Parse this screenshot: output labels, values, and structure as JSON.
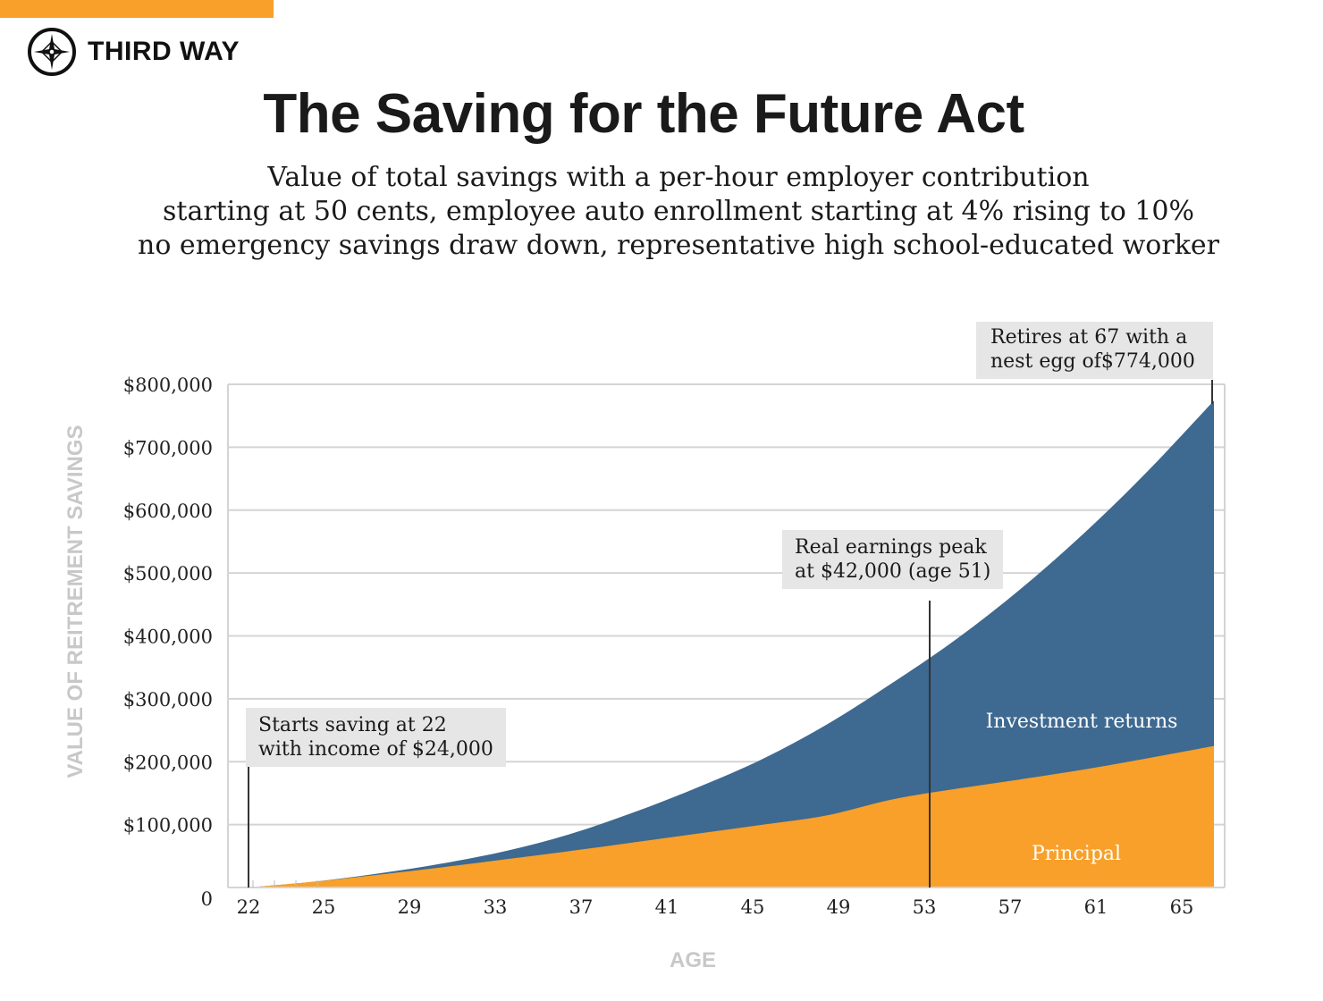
{
  "brand": {
    "name": "THIRD WAY",
    "accent": "#f8a02a"
  },
  "title": "The Saving for the Future Act",
  "subtitle": [
    "Value of total savings with a per-hour employer contribution",
    "starting at 50 cents, employee auto enrollment starting at 4% rising to 10%",
    "no emergency savings draw down, representative high school-educated worker"
  ],
  "chart_data": {
    "type": "area",
    "stacked": false,
    "xlabel": "AGE",
    "ylabel": "VALUE OF REITREMENT SAVINGS",
    "xlim": [
      22,
      67
    ],
    "ylim": [
      0,
      800000
    ],
    "grid": true,
    "x_ticks": [
      22,
      25,
      29,
      33,
      37,
      41,
      45,
      49,
      53,
      57,
      61,
      65
    ],
    "y_ticks": [
      {
        "value": 0,
        "label": "0"
      },
      {
        "value": 100000,
        "label": "$100,000"
      },
      {
        "value": 200000,
        "label": "$200,000"
      },
      {
        "value": 300000,
        "label": "$300,000"
      },
      {
        "value": 400000,
        "label": "$400,000"
      },
      {
        "value": 500000,
        "label": "$500,000"
      },
      {
        "value": 600000,
        "label": "$600,000"
      },
      {
        "value": 700000,
        "label": "$700,000"
      },
      {
        "value": 800000,
        "label": "$800,000"
      }
    ],
    "x": [
      22,
      25,
      28,
      31,
      34,
      37,
      40,
      43,
      46,
      49,
      52,
      55,
      58,
      61,
      64,
      67
    ],
    "series": [
      {
        "name": "Investment returns",
        "role": "total",
        "color": "#3e6990",
        "values": [
          0,
          9000,
          22000,
          38000,
          58000,
          85000,
          120000,
          160000,
          205000,
          260000,
          325000,
          395000,
          475000,
          565000,
          665000,
          774000
        ]
      },
      {
        "name": "Principal",
        "role": "principal",
        "color": "#f8a02a",
        "values": [
          0,
          9000,
          20000,
          32000,
          45000,
          58000,
          72000,
          86000,
          100000,
          115000,
          140000,
          157000,
          172000,
          188000,
          206000,
          225000
        ]
      }
    ],
    "annotations": [
      {
        "age": 22,
        "lines": [
          "Starts saving at 22",
          "with income of $24,000"
        ]
      },
      {
        "age": 51,
        "lines": [
          "Real earnings peak",
          "at $42,000 (age 51)"
        ]
      },
      {
        "age": 67,
        "lines": [
          "Retires at 67 with a",
          "nest egg of$774,000"
        ]
      }
    ]
  }
}
